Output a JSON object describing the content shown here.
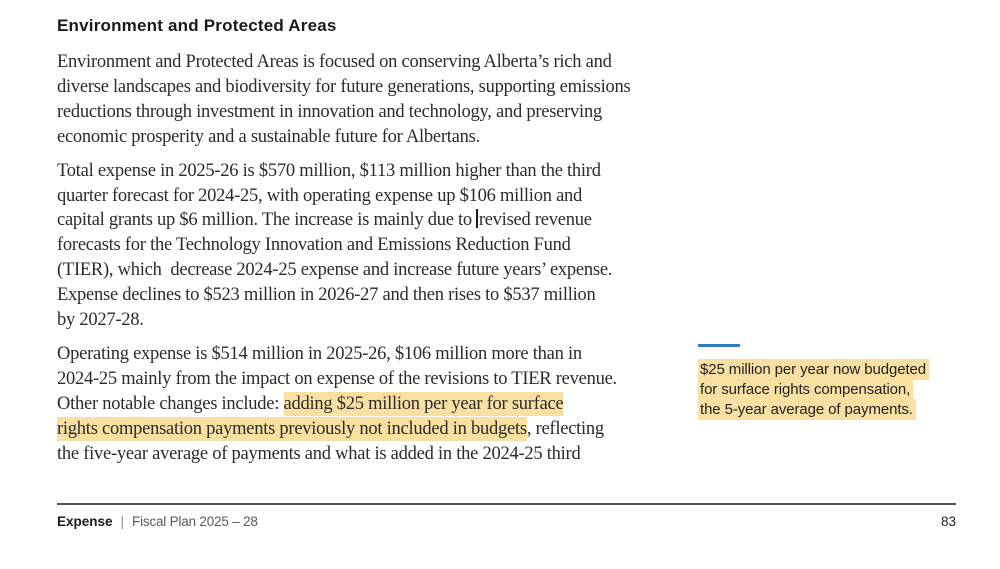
{
  "page": {
    "background": "#ffffff"
  },
  "colors": {
    "highlight": "#f8e0a2",
    "accent_blue": "#2f80c3",
    "body_text": "#2b2b2b",
    "footer_muted": "#5a5a5a",
    "rule": "#555555"
  },
  "article": {
    "heading": "Environment and Protected Areas",
    "paragraphs": [
      {
        "lines": [
          [
            {
              "t": "Environment and Protected Areas is focused on conserving Alberta’s rich and"
            }
          ],
          [
            {
              "t": "diverse landscapes and biodiversity for future generations, supporting emissions"
            }
          ],
          [
            {
              "t": "reductions through investment in innovation and technology, and preserving"
            }
          ],
          [
            {
              "t": "economic prosperity and a sustainable future for Albertans."
            }
          ]
        ]
      },
      {
        "lines": [
          [
            {
              "t": "Total expense in 2025-26 is $570 million, $113 million higher than the third"
            }
          ],
          [
            {
              "t": "quarter forecast for 2024-25, with operating expense up $106 million and"
            }
          ],
          [
            {
              "t": "capital grants up $6 million. The increase is mainly due to "
            },
            {
              "caret": true
            },
            {
              "t": "revised revenue"
            }
          ],
          [
            {
              "t": "forecasts for the Technology Innovation and Emissions Reduction Fund"
            }
          ],
          [
            {
              "t": "(TIER), which  decrease 2024-25 expense and increase future years’ expense."
            }
          ],
          [
            {
              "t": "Expense declines to $523 million in 2026-27 and then rises to $537 million"
            }
          ],
          [
            {
              "t": "by 2027-28."
            }
          ]
        ]
      },
      {
        "lines": [
          [
            {
              "t": "Operating expense is $514 million in 2025-26, $106 million more than in"
            }
          ],
          [
            {
              "t": "2024-25 mainly from the impact on expense of the revisions to TIER revenue."
            }
          ],
          [
            {
              "t": "Other notable changes include: "
            },
            {
              "t": "adding $25 million per year for surface",
              "h": true
            }
          ],
          [
            {
              "t": "rights compensation payments previously not included in budgets",
              "h": true
            },
            {
              "t": ", reflecting"
            }
          ],
          [
            {
              "t": "the five-year average of payments and what is added in the 2024-25 third"
            }
          ]
        ]
      }
    ]
  },
  "sidenote": {
    "lines": [
      "$25 million per year now budgeted",
      "for surface rights compensation,",
      "the 5-year average of payments."
    ]
  },
  "footer": {
    "section": "Expense",
    "separator": "|",
    "document_title": "Fiscal Plan 2025 – 28",
    "page_number": "83"
  }
}
